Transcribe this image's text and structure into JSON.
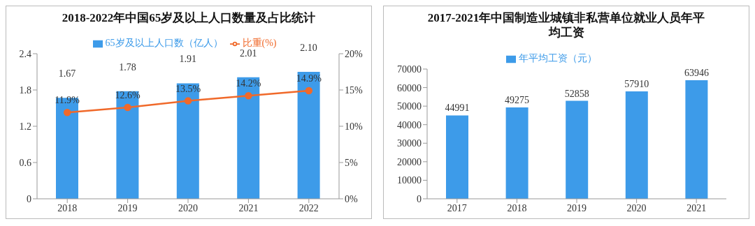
{
  "chart_data": [
    {
      "type": "bar",
      "title": "2018-2022年中国65岁及以上人口数量及占比统计",
      "categories": [
        "2018",
        "2019",
        "2020",
        "2021",
        "2022"
      ],
      "series": [
        {
          "name": "65岁及以上人口数（亿人）",
          "type": "bar",
          "color": "#3d9be9",
          "values": [
            1.67,
            1.78,
            1.91,
            2.01,
            2.1
          ],
          "value_labels": [
            "1.67",
            "1.78",
            "1.91",
            "2.01",
            "2.10"
          ]
        },
        {
          "name": "比重(%)",
          "type": "line",
          "axis": "y2",
          "color": "#f0692a",
          "marker": "circle",
          "values": [
            11.9,
            12.6,
            13.5,
            14.2,
            14.9
          ],
          "value_labels": [
            "11.9%",
            "12.6%",
            "13.5%",
            "14.2%",
            "14.9%"
          ]
        }
      ],
      "ylim": [
        0,
        2.4
      ],
      "yticks": [
        0,
        0.6,
        1.2,
        1.8,
        2.4
      ],
      "y2lim": [
        0,
        20
      ],
      "y2ticks": [
        {
          "value": 0,
          "label": "0%"
        },
        {
          "value": 5,
          "label": "5%"
        },
        {
          "value": 10,
          "label": "10%"
        },
        {
          "value": 15,
          "label": "15%"
        },
        {
          "value": 20,
          "label": "20%"
        }
      ],
      "legend": "top",
      "grid": false
    },
    {
      "type": "bar",
      "title": "2017-2021年中国制造业城镇非私营单位就业人员年平均工资",
      "categories": [
        "2017",
        "2018",
        "2019",
        "2020",
        "2021"
      ],
      "series": [
        {
          "name": "年平均工资（元）",
          "color": "#3d9be9",
          "values": [
            44991,
            49275,
            52858,
            57910,
            63946
          ]
        }
      ],
      "ylim": [
        0,
        70000
      ],
      "yticks": [
        0,
        10000,
        20000,
        30000,
        40000,
        50000,
        60000,
        70000
      ],
      "data_labels": true,
      "legend": "top",
      "grid": false
    }
  ]
}
